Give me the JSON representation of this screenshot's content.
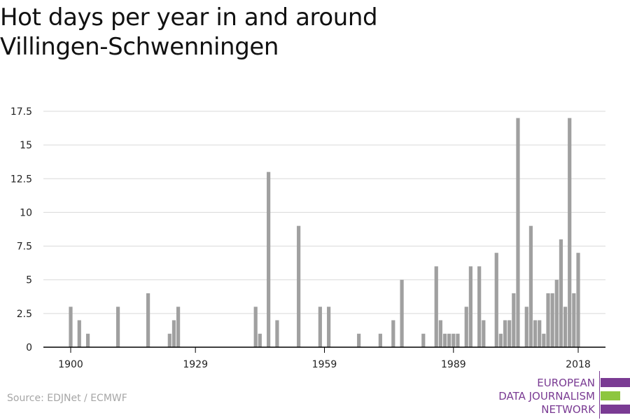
{
  "title_lines": [
    "Hot days per year in and around",
    "Villingen-Schwenningen"
  ],
  "source": "Source: EDJNet / ECMWF",
  "logo": {
    "lines": [
      "EUROPEAN",
      "DATA JOURNALISM",
      "NETWORK"
    ],
    "colors": {
      "text": "#7a3b93",
      "bar_primary": "#7a3b93",
      "bar_accent": "#8dc63f"
    }
  },
  "colors": {
    "bar": "#a0a0a0",
    "grid": "#d9d9d9",
    "axis": "#000000",
    "tick_text": "#222222"
  },
  "chart_data": {
    "type": "bar",
    "title": "Hot days per year in and around Villingen-Schwenningen",
    "xlabel": "",
    "ylabel": "",
    "ylim": [
      0,
      17.5
    ],
    "xlim": [
      1900,
      2018
    ],
    "grid": true,
    "x_ticks": [
      1900,
      1929,
      1959,
      1989,
      2018
    ],
    "y_ticks": [
      0,
      2.5,
      5,
      7.5,
      10,
      12.5,
      15,
      17.5
    ],
    "x_tick_labels": [
      "1900",
      "1929",
      "1959",
      "1989",
      "2018"
    ],
    "y_tick_labels": [
      "0",
      "2.5",
      "5",
      "7.5",
      "10",
      "12.5",
      "15",
      "17.5"
    ],
    "x": [
      1900,
      1902,
      1904,
      1911,
      1918,
      1923,
      1924,
      1925,
      1943,
      1944,
      1946,
      1948,
      1953,
      1958,
      1960,
      1967,
      1972,
      1975,
      1977,
      1982,
      1985,
      1986,
      1987,
      1988,
      1989,
      1990,
      1992,
      1993,
      1995,
      1996,
      1999,
      2000,
      2001,
      2002,
      2003,
      2004,
      2006,
      2007,
      2008,
      2009,
      2010,
      2011,
      2012,
      2013,
      2014,
      2015,
      2016,
      2017,
      2018
    ],
    "values": [
      3,
      2,
      1,
      3,
      4,
      1,
      2,
      3,
      3,
      1,
      13,
      2,
      9,
      3,
      3,
      1,
      1,
      2,
      5,
      1,
      6,
      2,
      1,
      1,
      1,
      1,
      3,
      6,
      6,
      2,
      7,
      1,
      2,
      2,
      4,
      17,
      3,
      9,
      2,
      2,
      1,
      4,
      4,
      5,
      8,
      3,
      17,
      4,
      7
    ]
  }
}
